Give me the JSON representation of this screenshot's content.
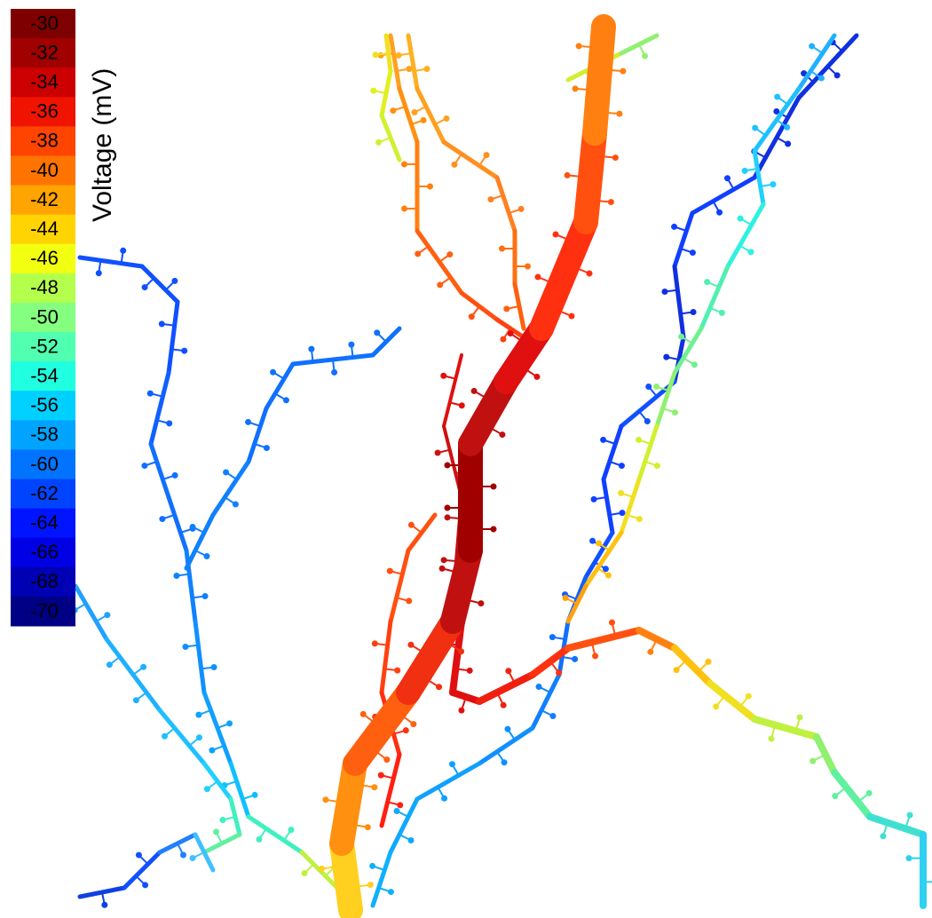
{
  "colorbar": {
    "title": "Voltage (mV)",
    "labels": [
      "-30",
      "-32",
      "-34",
      "-36",
      "-38",
      "-40",
      "-42",
      "-44",
      "-46",
      "-48",
      "-50",
      "-52",
      "-54",
      "-56",
      "-58",
      "-60",
      "-62",
      "-64",
      "-66",
      "-68",
      "-70"
    ],
    "colors": [
      "#7f0000",
      "#a00000",
      "#cc0000",
      "#f01400",
      "#ff4400",
      "#ff7400",
      "#ffa400",
      "#ffd400",
      "#f2ff10",
      "#b4ff4c",
      "#84ff80",
      "#50ffb0",
      "#20ffe0",
      "#00d0ff",
      "#00a4ff",
      "#0074ff",
      "#0044ff",
      "#0014ff",
      "#0000e4",
      "#0000b4",
      "#000084"
    ]
  }
}
